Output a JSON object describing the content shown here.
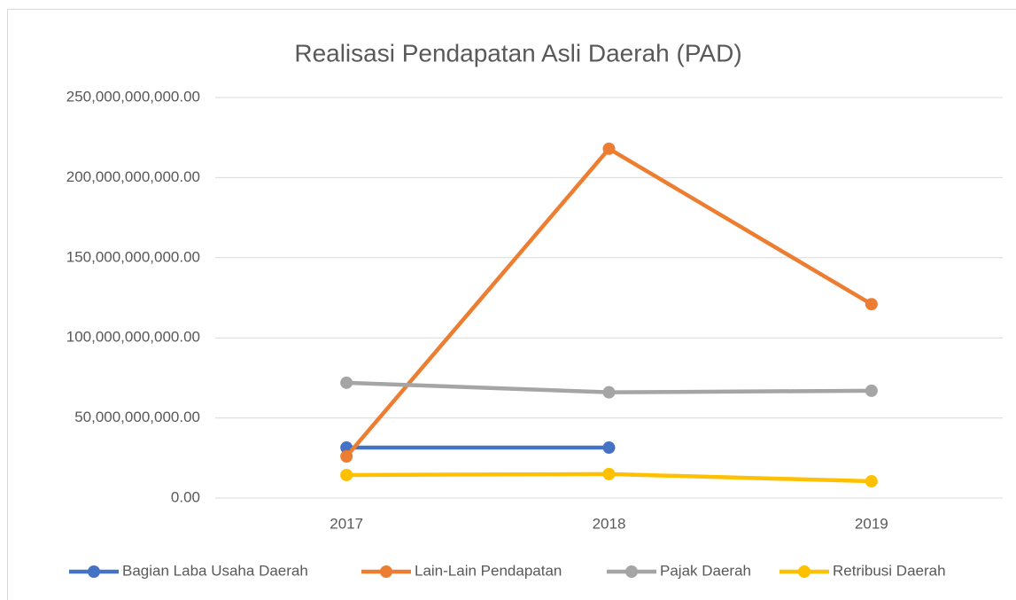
{
  "chart_data": {
    "type": "line",
    "title": "Realisasi Pendapatan Asli Daerah (PAD)",
    "categories": [
      "2017",
      "2018",
      "2019"
    ],
    "series": [
      {
        "name": "Bagian Laba Usaha Daerah",
        "color": "#4472c4",
        "values": [
          31500000000,
          31500000000,
          null
        ]
      },
      {
        "name": "Lain-Lain Pendapatan",
        "color": "#ed7d31",
        "values": [
          26000000000,
          218000000000,
          121000000000
        ]
      },
      {
        "name": "Pajak Daerah",
        "color": "#a5a5a5",
        "values": [
          72000000000,
          66000000000,
          67000000000
        ]
      },
      {
        "name": "Retribusi Daerah",
        "color": "#ffc000",
        "values": [
          14400000000,
          15000000000,
          10500000000
        ]
      }
    ],
    "ylim": [
      0,
      250000000000
    ],
    "yticks": [
      {
        "value": 0,
        "label": "0.00"
      },
      {
        "value": 50000000000,
        "label": "50,000,000,000.00"
      },
      {
        "value": 100000000000,
        "label": "100,000,000,000.00"
      },
      {
        "value": 150000000000,
        "label": "150,000,000,000.00"
      },
      {
        "value": 200000000000,
        "label": "200,000,000,000.00"
      },
      {
        "value": 250000000000,
        "label": "250,000,000,000.00"
      }
    ],
    "grid": true,
    "legend": "bottom"
  }
}
